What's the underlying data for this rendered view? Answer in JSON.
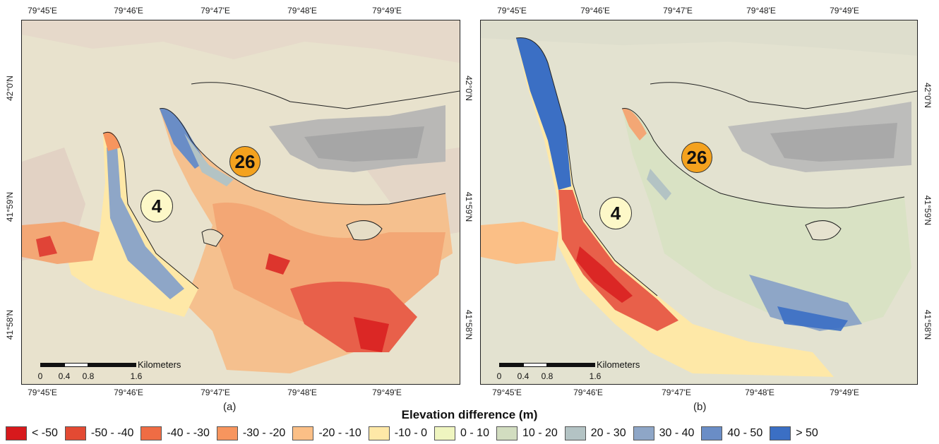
{
  "panels": [
    {
      "id": "a",
      "sublabel": "(a)",
      "top_ticks": [
        "79°45'E",
        "79°46'E",
        "79°47'E",
        "79°48'E",
        "79°49'E"
      ],
      "bottom_ticks": [
        "79°45'E",
        "79°46'E",
        "79°47'E",
        "79°48'E",
        "79°49'E"
      ],
      "left_ticks": [
        "42°0'N",
        "41°59'N",
        "41°58'N"
      ],
      "right_ticks": [
        "42°0'N",
        "41°59'N",
        "41°58'N"
      ],
      "glacier_labels": [
        "4",
        "26"
      ],
      "scalebar": {
        "units": "Kilometers",
        "labels": [
          "0",
          "0.4",
          "0.8",
          "1.6"
        ]
      }
    },
    {
      "id": "b",
      "sublabel": "(b)",
      "top_ticks": [
        "79°45'E",
        "79°46'E",
        "79°47'E",
        "79°48'E",
        "79°49'E"
      ],
      "bottom_ticks": [
        "79°45'E",
        "79°46'E",
        "79°47'E",
        "79°48'E",
        "79°49'E"
      ],
      "left_ticks": [],
      "right_ticks": [
        "42°0'N",
        "41°59'N",
        "41°58'N"
      ],
      "glacier_labels": [
        "4",
        "26"
      ],
      "scalebar": {
        "units": "Kilometers",
        "labels": [
          "0",
          "0.4",
          "0.8",
          "1.6"
        ]
      }
    }
  ],
  "legend": {
    "title": "Elevation difference (m)",
    "classes": [
      {
        "label": "< -50",
        "color": "#d7191c"
      },
      {
        "label": "-50 - -40",
        "color": "#e34a33"
      },
      {
        "label": "-40 - -30",
        "color": "#ef6c44"
      },
      {
        "label": "-30 - -20",
        "color": "#f7955e"
      },
      {
        "label": "-20 - -10",
        "color": "#fbbf86"
      },
      {
        "label": "-10 - 0",
        "color": "#fee8a7"
      },
      {
        "label": "0 - 10",
        "color": "#eff5c0"
      },
      {
        "label": "10 - 20",
        "color": "#d2ddc0"
      },
      {
        "label": "20 - 30",
        "color": "#b3c3c4"
      },
      {
        "label": "30 - 40",
        "color": "#8ea6c7"
      },
      {
        "label": "40 - 50",
        "color": "#6a8dc6"
      },
      {
        "label": "> 50",
        "color": "#3b6fc4"
      }
    ]
  }
}
